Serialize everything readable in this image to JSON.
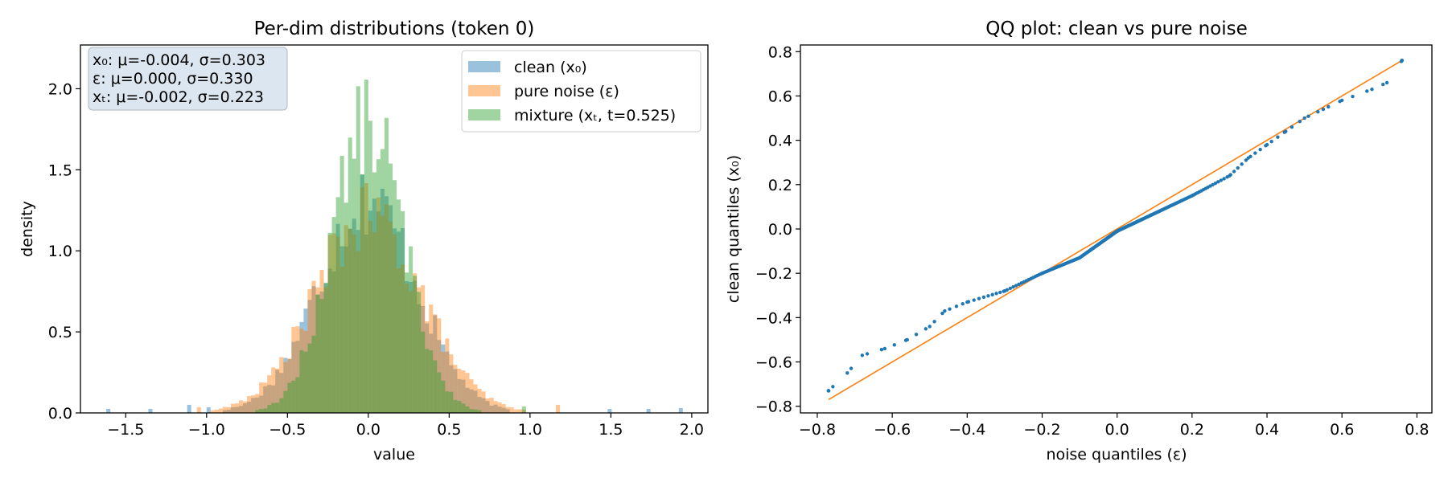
{
  "chart_data": [
    {
      "type": "histogram",
      "title": "Per-dim distributions (token 0)",
      "xlabel": "value",
      "ylabel": "density",
      "xlim": [
        -1.78,
        2.1
      ],
      "ylim": [
        0,
        2.27
      ],
      "xticks": [
        -1.5,
        -1.0,
        -0.5,
        0.0,
        0.5,
        1.0,
        1.5,
        2.0
      ],
      "xtick_labels": [
        "−1.5",
        "−1.0",
        "−0.5",
        "0.0",
        "0.5",
        "1.0",
        "1.5",
        "2.0"
      ],
      "yticks": [
        0.0,
        0.5,
        1.0,
        1.5,
        2.0
      ],
      "ytick_labels": [
        "0.0",
        "0.5",
        "1.0",
        "1.5",
        "2.0"
      ],
      "stats_box": [
        "x₀: μ=-0.004, σ=0.303",
        "ε: μ=0.000, σ=0.330",
        "xₜ: μ=-0.002, σ=0.223"
      ],
      "legend_position": "top-right",
      "series": [
        {
          "name": "clean (x₀)",
          "color": "#1f77b4",
          "mu": -0.004,
          "sigma": 0.303,
          "outliers": [
            [
              -1.62,
              0.025
            ],
            [
              -1.36,
              0.025
            ],
            [
              -1.12,
              0.05
            ],
            [
              -1.0,
              0.035
            ],
            [
              1.48,
              0.025
            ],
            [
              1.72,
              0.025
            ],
            [
              1.92,
              0.03
            ]
          ]
        },
        {
          "name": "pure noise (ε)",
          "color": "#ff7f0e",
          "mu": 0.0,
          "sigma": 0.33,
          "outliers": [
            [
              -1.06,
              0.035
            ],
            [
              1.16,
              0.05
            ]
          ]
        },
        {
          "name": "mixture (xₜ, t=0.525)",
          "color": "#2ca02c",
          "mu": -0.002,
          "sigma": 0.223,
          "outliers": [
            [
              0.95,
              0.04
            ]
          ]
        }
      ]
    },
    {
      "type": "scatter",
      "title": "QQ plot: clean vs pure noise",
      "xlabel": "noise quantiles (ε)",
      "ylabel": "clean quantiles (x₀)",
      "xlim": [
        -0.845,
        0.84
      ],
      "ylim": [
        -0.83,
        0.83
      ],
      "xticks": [
        -0.8,
        -0.6,
        -0.4,
        -0.2,
        0.0,
        0.2,
        0.4,
        0.6,
        0.8
      ],
      "xtick_labels": [
        "−0.8",
        "−0.6",
        "−0.4",
        "−0.2",
        "0.0",
        "0.2",
        "0.4",
        "0.6",
        "0.8"
      ],
      "yticks": [
        -0.8,
        -0.6,
        -0.4,
        -0.2,
        0.0,
        0.2,
        0.4,
        0.6,
        0.8
      ],
      "ytick_labels": [
        "−0.8",
        "−0.6",
        "−0.4",
        "−0.2",
        "0.0",
        "0.2",
        "0.4",
        "0.6",
        "0.8"
      ],
      "reference_line": {
        "x": [
          -0.77,
          0.76
        ],
        "y": [
          -0.77,
          0.76
        ],
        "color": "#ff7f0e"
      },
      "point_color": "#1f77b4",
      "curve_knots": [
        [
          -0.77,
          -0.73
        ],
        [
          -0.72,
          -0.65
        ],
        [
          -0.68,
          -0.57
        ],
        [
          -0.62,
          -0.54
        ],
        [
          -0.56,
          -0.5
        ],
        [
          -0.5,
          -0.44
        ],
        [
          -0.46,
          -0.37
        ],
        [
          -0.4,
          -0.33
        ],
        [
          -0.3,
          -0.28
        ],
        [
          -0.2,
          -0.2
        ],
        [
          -0.1,
          -0.13
        ],
        [
          0.0,
          -0.01
        ],
        [
          0.1,
          0.07
        ],
        [
          0.2,
          0.15
        ],
        [
          0.3,
          0.24
        ],
        [
          0.35,
          0.32
        ],
        [
          0.4,
          0.38
        ],
        [
          0.45,
          0.44
        ],
        [
          0.5,
          0.5
        ],
        [
          0.55,
          0.54
        ],
        [
          0.6,
          0.58
        ],
        [
          0.68,
          0.63
        ],
        [
          0.72,
          0.66
        ],
        [
          0.76,
          0.76
        ]
      ],
      "n_points": 300
    }
  ]
}
